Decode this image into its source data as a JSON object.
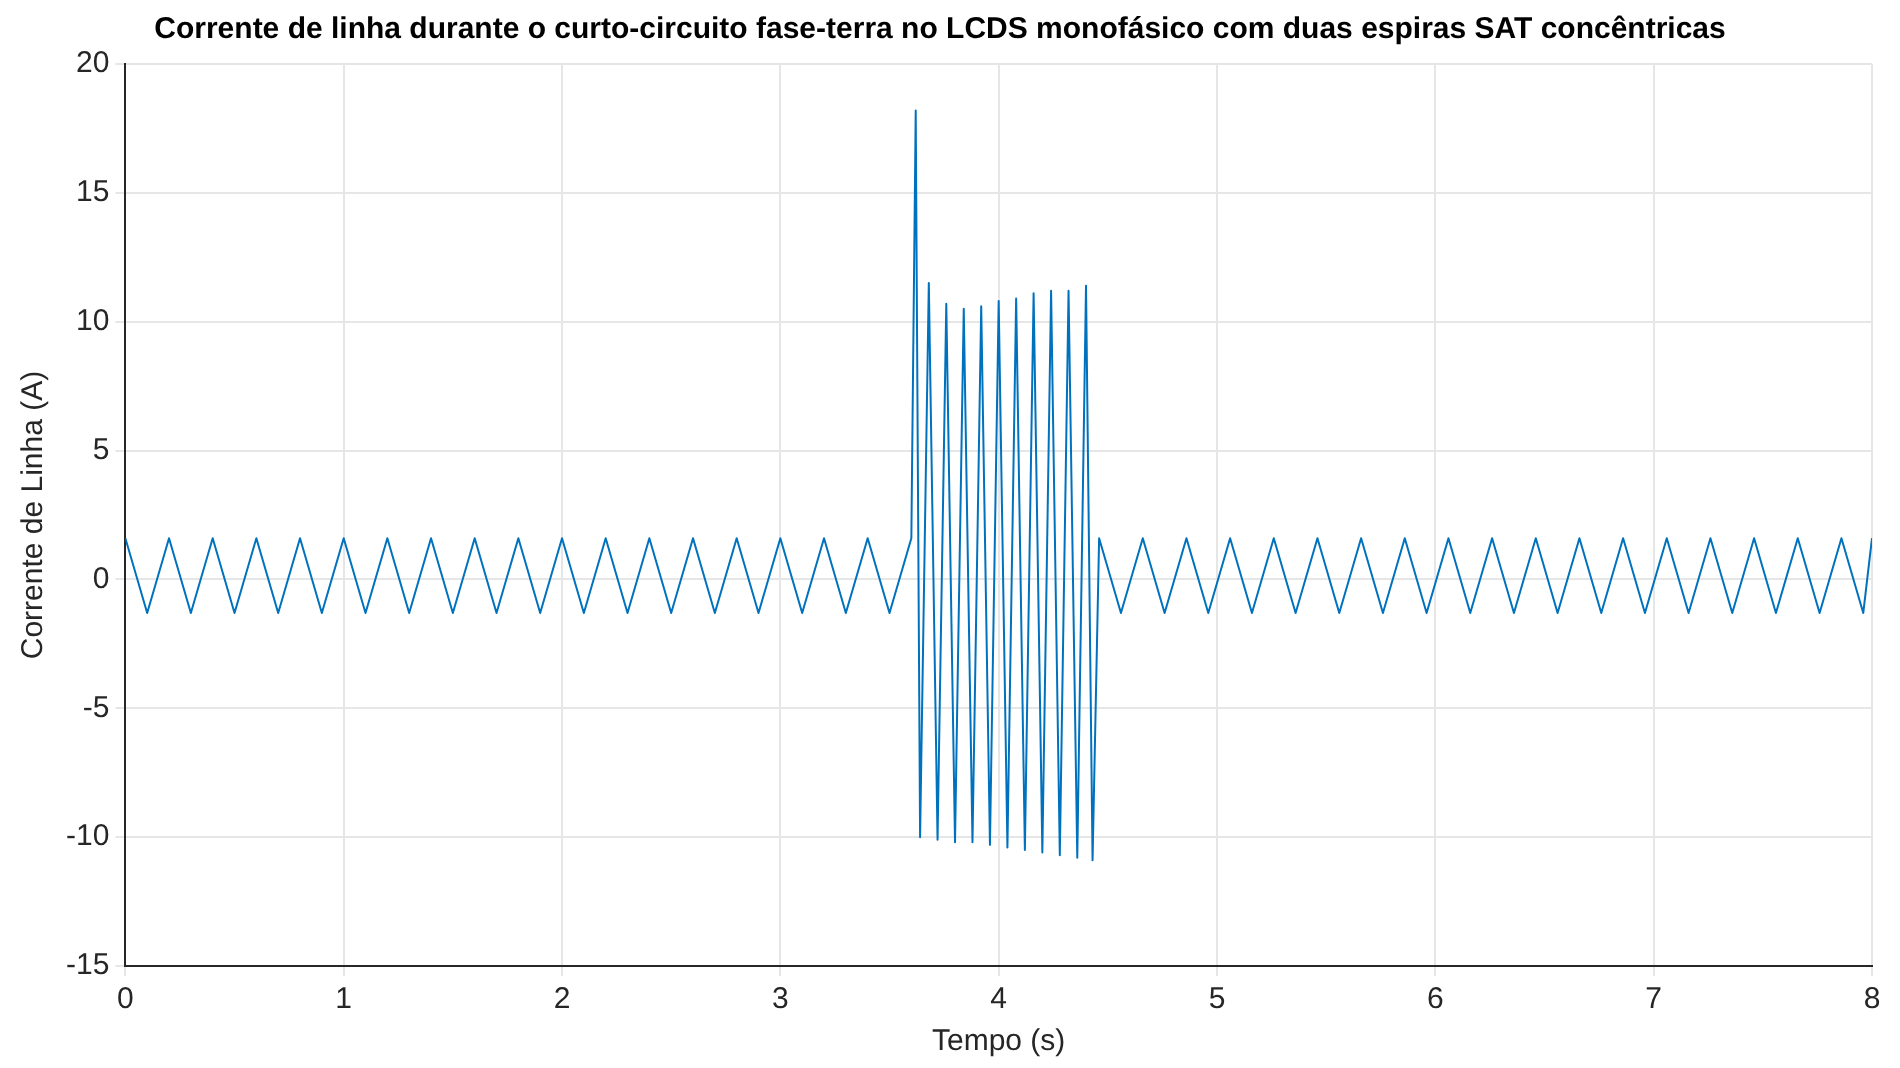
{
  "chart_data": {
    "type": "line",
    "title": "Corrente de linha durante o curto-circuito fase-terra no LCDS monofásico com duas espiras SAT concêntricas",
    "xlabel": "Tempo (s)",
    "ylabel": "Corrente de Linha (A)",
    "series": [
      {
        "color": "#0072bd",
        "x": [
          0.0,
          0.1,
          0.2,
          0.3,
          0.4,
          0.5,
          0.6,
          0.7,
          0.8,
          0.9,
          1.0,
          1.1,
          1.2,
          1.3,
          1.4,
          1.5,
          1.6,
          1.7,
          1.8,
          1.9,
          2.0,
          2.1,
          2.2,
          2.3,
          2.4,
          2.5,
          2.6,
          2.7,
          2.8,
          2.9,
          3.0,
          3.1,
          3.2,
          3.3,
          3.4,
          3.5,
          3.6,
          3.62,
          3.64,
          3.68,
          3.72,
          3.76,
          3.8,
          3.84,
          3.88,
          3.92,
          3.96,
          4.0,
          4.04,
          4.08,
          4.12,
          4.16,
          4.2,
          4.24,
          4.28,
          4.32,
          4.36,
          4.4,
          4.43,
          4.46,
          4.56,
          4.66,
          4.76,
          4.86,
          4.96,
          5.06,
          5.16,
          5.26,
          5.36,
          5.46,
          5.56,
          5.66,
          5.76,
          5.86,
          5.96,
          6.06,
          6.16,
          6.26,
          6.36,
          6.46,
          6.56,
          6.66,
          6.76,
          6.86,
          6.96,
          7.06,
          7.16,
          7.26,
          7.36,
          7.46,
          7.56,
          7.66,
          7.76,
          7.86,
          7.96,
          8.0
        ],
        "values": [
          1.6,
          -1.3,
          1.6,
          -1.3,
          1.6,
          -1.3,
          1.6,
          -1.3,
          1.6,
          -1.3,
          1.6,
          -1.3,
          1.6,
          -1.3,
          1.6,
          -1.3,
          1.6,
          -1.3,
          1.6,
          -1.3,
          1.6,
          -1.3,
          1.6,
          -1.3,
          1.6,
          -1.3,
          1.6,
          -1.3,
          1.6,
          -1.3,
          1.6,
          -1.3,
          1.6,
          -1.3,
          1.6,
          -1.3,
          1.6,
          18.2,
          -10.0,
          11.5,
          -10.1,
          10.7,
          -10.2,
          10.5,
          -10.2,
          10.6,
          -10.3,
          10.8,
          -10.4,
          10.9,
          -10.5,
          11.1,
          -10.6,
          11.2,
          -10.7,
          11.2,
          -10.8,
          11.4,
          -10.9,
          1.6,
          -1.3,
          1.6,
          -1.3,
          1.6,
          -1.3,
          1.6,
          -1.3,
          1.6,
          -1.3,
          1.6,
          -1.3,
          1.6,
          -1.3,
          1.6,
          -1.3,
          1.6,
          -1.3,
          1.6,
          -1.3,
          1.6,
          -1.3,
          1.6,
          -1.3,
          1.6,
          -1.3,
          1.6,
          -1.3,
          1.6,
          -1.3,
          1.6,
          -1.3,
          1.6,
          -1.3,
          1.6,
          -1.3,
          1.6
        ]
      }
    ],
    "xlim": [
      0,
      8
    ],
    "xticks": [
      0,
      1,
      2,
      3,
      4,
      5,
      6,
      7,
      8
    ],
    "ylim": [
      -15,
      20
    ],
    "yticks": [
      -15,
      -10,
      -5,
      0,
      5,
      10,
      15,
      20
    ],
    "grid": true,
    "legend": false,
    "marker": "none",
    "line_style": "solid"
  }
}
